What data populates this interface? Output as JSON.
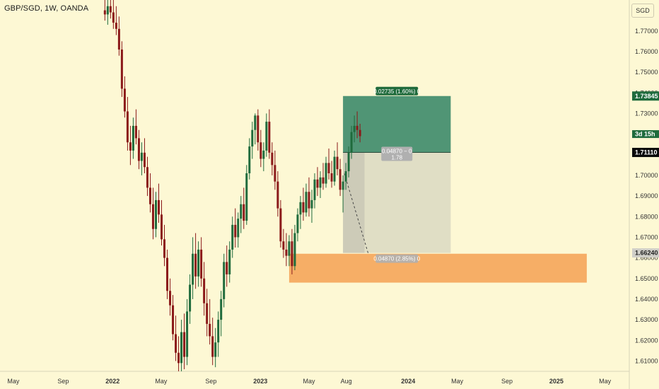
{
  "header": {
    "symbol": "GBP/SGD, 1W, OANDA",
    "currency": "SGD"
  },
  "colors": {
    "up": "#1f6b3c",
    "down": "#8b1a1a",
    "background": "#fdf8d4",
    "profit_zone": "#3d8a6a",
    "loss_zone": "#c8c8b8",
    "demand_zone": "#f5a55a",
    "tag_dark": "#0a0a0a",
    "tag_green": "#1f6b3c",
    "tag_gray": "#d0cfc8"
  },
  "chart_data": {
    "type": "candlestick",
    "y_range": [
      1.605,
      1.785
    ],
    "x_range": [
      "2021-03-29",
      "2025-06-30"
    ],
    "y_ticks": [
      "1.77000",
      "1.76000",
      "1.75000",
      "1.74000",
      "1.73000",
      "1.72000",
      "1.71000",
      "1.70000",
      "1.69000",
      "1.68000",
      "1.67000",
      "1.66000",
      "1.65000",
      "1.64000",
      "1.63000",
      "1.62000",
      "1.61000"
    ],
    "x_ticks": [
      {
        "label": "May",
        "date": "2021-05-01"
      },
      {
        "label": "Sep",
        "date": "2021-09-01"
      },
      {
        "label": "2022",
        "date": "2022-01-01"
      },
      {
        "label": "May",
        "date": "2022-05-01"
      },
      {
        "label": "Sep",
        "date": "2022-09-01"
      },
      {
        "label": "2023",
        "date": "2023-01-01"
      },
      {
        "label": "May",
        "date": "2023-05-01"
      },
      {
        "label": "Aug",
        "date": "2023-08-01"
      },
      {
        "label": "2024",
        "date": "2024-01-01"
      },
      {
        "label": "May",
        "date": "2024-05-01"
      },
      {
        "label": "Sep",
        "date": "2024-09-01"
      },
      {
        "label": "2025",
        "date": "2025-01-01"
      },
      {
        "label": "May",
        "date": "2025-05-01"
      }
    ],
    "candle_start": "2021-12-13",
    "candle_interval_days": 7,
    "candles": [
      [
        1.78,
        1.79,
        1.775,
        1.778
      ],
      [
        1.778,
        1.786,
        1.773,
        1.782
      ],
      [
        1.782,
        1.79,
        1.776,
        1.779
      ],
      [
        1.779,
        1.785,
        1.771,
        1.774
      ],
      [
        1.774,
        1.782,
        1.768,
        1.771
      ],
      [
        1.771,
        1.777,
        1.758,
        1.761
      ],
      [
        1.761,
        1.765,
        1.738,
        1.742
      ],
      [
        1.742,
        1.748,
        1.728,
        1.731
      ],
      [
        1.731,
        1.738,
        1.712,
        1.716
      ],
      [
        1.716,
        1.724,
        1.705,
        1.712
      ],
      [
        1.712,
        1.728,
        1.708,
        1.724
      ],
      [
        1.724,
        1.732,
        1.715,
        1.718
      ],
      [
        1.718,
        1.722,
        1.703,
        1.707
      ],
      [
        1.707,
        1.716,
        1.7,
        1.711
      ],
      [
        1.711,
        1.718,
        1.701,
        1.704
      ],
      [
        1.704,
        1.709,
        1.69,
        1.694
      ],
      [
        1.694,
        1.701,
        1.682,
        1.686
      ],
      [
        1.686,
        1.694,
        1.669,
        1.674
      ],
      [
        1.674,
        1.692,
        1.67,
        1.688
      ],
      [
        1.688,
        1.696,
        1.677,
        1.681
      ],
      [
        1.681,
        1.688,
        1.666,
        1.669
      ],
      [
        1.669,
        1.676,
        1.656,
        1.66
      ],
      [
        1.66,
        1.664,
        1.64,
        1.644
      ],
      [
        1.644,
        1.65,
        1.632,
        1.637
      ],
      [
        1.637,
        1.642,
        1.62,
        1.623
      ],
      [
        1.623,
        1.632,
        1.61,
        1.614
      ],
      [
        1.614,
        1.622,
        1.605,
        1.609
      ],
      [
        1.609,
        1.63,
        1.605,
        1.624
      ],
      [
        1.624,
        1.633,
        1.606,
        1.612
      ],
      [
        1.612,
        1.64,
        1.608,
        1.634
      ],
      [
        1.634,
        1.652,
        1.628,
        1.647
      ],
      [
        1.647,
        1.67,
        1.64,
        1.662
      ],
      [
        1.662,
        1.672,
        1.645,
        1.651
      ],
      [
        1.651,
        1.668,
        1.646,
        1.664
      ],
      [
        1.664,
        1.67,
        1.646,
        1.65
      ],
      [
        1.65,
        1.658,
        1.632,
        1.638
      ],
      [
        1.638,
        1.645,
        1.622,
        1.628
      ],
      [
        1.628,
        1.64,
        1.618,
        1.622
      ],
      [
        1.622,
        1.631,
        1.608,
        1.612
      ],
      [
        1.612,
        1.626,
        1.607,
        1.619
      ],
      [
        1.619,
        1.634,
        1.612,
        1.63
      ],
      [
        1.63,
        1.644,
        1.622,
        1.64
      ],
      [
        1.64,
        1.662,
        1.636,
        1.658
      ],
      [
        1.658,
        1.666,
        1.646,
        1.652
      ],
      [
        1.652,
        1.668,
        1.648,
        1.664
      ],
      [
        1.664,
        1.68,
        1.66,
        1.676
      ],
      [
        1.676,
        1.684,
        1.665,
        1.67
      ],
      [
        1.67,
        1.682,
        1.665,
        1.679
      ],
      [
        1.679,
        1.69,
        1.672,
        1.686
      ],
      [
        1.686,
        1.694,
        1.674,
        1.678
      ],
      [
        1.678,
        1.705,
        1.676,
        1.701
      ],
      [
        1.701,
        1.718,
        1.698,
        1.714
      ],
      [
        1.714,
        1.726,
        1.708,
        1.722
      ],
      [
        1.722,
        1.73,
        1.715,
        1.729
      ],
      [
        1.729,
        1.732,
        1.712,
        1.716
      ],
      [
        1.716,
        1.722,
        1.704,
        1.708
      ],
      [
        1.708,
        1.716,
        1.702,
        1.712
      ],
      [
        1.712,
        1.73,
        1.709,
        1.726
      ],
      [
        1.726,
        1.732,
        1.708,
        1.711
      ],
      [
        1.711,
        1.716,
        1.7,
        1.705
      ],
      [
        1.705,
        1.712,
        1.693,
        1.697
      ],
      [
        1.697,
        1.702,
        1.68,
        1.684
      ],
      [
        1.684,
        1.688,
        1.665,
        1.668
      ],
      [
        1.668,
        1.674,
        1.66,
        1.664
      ],
      [
        1.664,
        1.672,
        1.656,
        1.661
      ],
      [
        1.661,
        1.671,
        1.656,
        1.668
      ],
      [
        1.668,
        1.674,
        1.652,
        1.656
      ],
      [
        1.656,
        1.676,
        1.654,
        1.672
      ],
      [
        1.672,
        1.684,
        1.668,
        1.681
      ],
      [
        1.681,
        1.69,
        1.674,
        1.687
      ],
      [
        1.687,
        1.694,
        1.678,
        1.682
      ],
      [
        1.682,
        1.696,
        1.68,
        1.692
      ],
      [
        1.692,
        1.699,
        1.68,
        1.684
      ],
      [
        1.684,
        1.693,
        1.677,
        1.688
      ],
      [
        1.688,
        1.701,
        1.684,
        1.698
      ],
      [
        1.698,
        1.704,
        1.69,
        1.694
      ],
      [
        1.694,
        1.702,
        1.689,
        1.699
      ],
      [
        1.699,
        1.706,
        1.693,
        1.696
      ],
      [
        1.696,
        1.709,
        1.694,
        1.706
      ],
      [
        1.706,
        1.713,
        1.698,
        1.701
      ],
      [
        1.701,
        1.707,
        1.694,
        1.697
      ],
      [
        1.697,
        1.712,
        1.695,
        1.709
      ],
      [
        1.709,
        1.716,
        1.7,
        1.703
      ],
      [
        1.703,
        1.708,
        1.69,
        1.693
      ],
      [
        1.693,
        1.7,
        1.682,
        1.697
      ],
      [
        1.697,
        1.706,
        1.693,
        1.702
      ],
      [
        1.702,
        1.714,
        1.699,
        1.711
      ],
      [
        1.711,
        1.724,
        1.708,
        1.721
      ],
      [
        1.721,
        1.729,
        1.716,
        1.724
      ],
      [
        1.724,
        1.731,
        1.718,
        1.722
      ],
      [
        1.722,
        1.725,
        1.716,
        1.719
      ]
    ],
    "price_tags": [
      {
        "value": "1.73845",
        "y": 1.73845,
        "style": "green"
      },
      {
        "value": "3d 15h",
        "y": 1.72,
        "style": "green-small"
      },
      {
        "value": "1.71110",
        "y": 1.7111,
        "style": "dark"
      },
      {
        "value": "1.66240",
        "y": 1.6624,
        "style": "gray"
      }
    ],
    "annotations": {
      "position": {
        "x_start": "2023-07-24",
        "x_end": "2024-04-15",
        "entry": 1.7111,
        "target": 1.73845,
        "stop": 1.6624
      },
      "target_label": "0.02735 (1.60%) 0",
      "ratio_label_1": "0.04870 − 0",
      "ratio_label_2": "1.78",
      "stop_label": "0.04870 (2.85%) 0",
      "demand_zone": {
        "x_start": "2023-03-13",
        "x_end": "2025-03-17",
        "top": 1.662,
        "bottom": 1.648
      }
    }
  }
}
